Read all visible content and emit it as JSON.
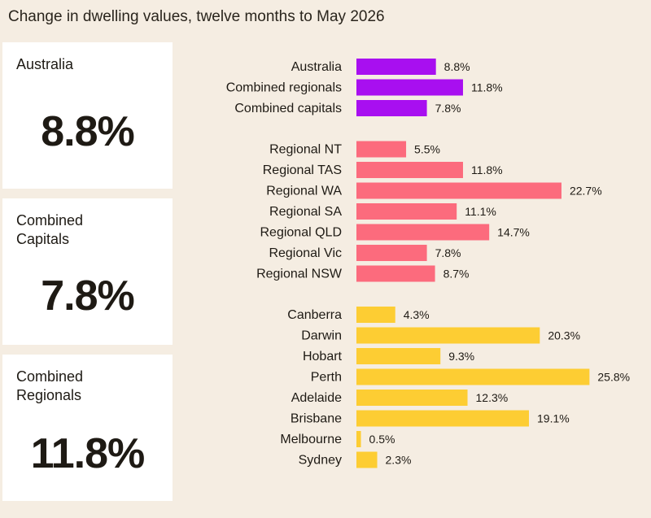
{
  "title": "Change in dwelling values, twelve months to May 2026",
  "cards": [
    {
      "label": "Australia",
      "value": "8.8%"
    },
    {
      "label": "Combined Capitals",
      "value": "7.8%"
    },
    {
      "label": "Combined Regionals",
      "value": "11.8%"
    }
  ],
  "colors": {
    "national": "#a80ff0",
    "regional": "#fc6b7d",
    "capital": "#fdcd33"
  },
  "chart_data": {
    "type": "bar",
    "orientation": "horizontal",
    "unit": "%",
    "xlim": [
      0,
      27
    ],
    "grid": false,
    "groups": [
      {
        "color_key": "national",
        "categories": [
          "Australia",
          "Combined regionals",
          "Combined capitals"
        ],
        "values": [
          8.8,
          11.8,
          7.8
        ],
        "labels": [
          "8.8%",
          "11.8%",
          "7.8%"
        ]
      },
      {
        "color_key": "regional",
        "categories": [
          "Regional NT",
          "Regional TAS",
          "Regional WA",
          "Regional SA",
          "Regional QLD",
          "Regional Vic",
          "Regional NSW"
        ],
        "values": [
          5.5,
          11.8,
          22.7,
          11.1,
          14.7,
          7.8,
          8.7
        ],
        "labels": [
          "5.5%",
          "11.8%",
          "22.7%",
          "11.1%",
          "14.7%",
          "7.8%",
          "8.7%"
        ]
      },
      {
        "color_key": "capital",
        "categories": [
          "Canberra",
          "Darwin",
          "Hobart",
          "Perth",
          "Adelaide",
          "Brisbane",
          "Melbourne",
          "Sydney"
        ],
        "values": [
          4.3,
          20.3,
          9.3,
          25.8,
          12.3,
          19.1,
          0.5,
          2.3
        ],
        "labels": [
          "4.3%",
          "20.3%",
          "9.3%",
          "25.8%",
          "12.3%",
          "19.1%",
          "0.5%",
          "2.3%"
        ]
      }
    ]
  }
}
